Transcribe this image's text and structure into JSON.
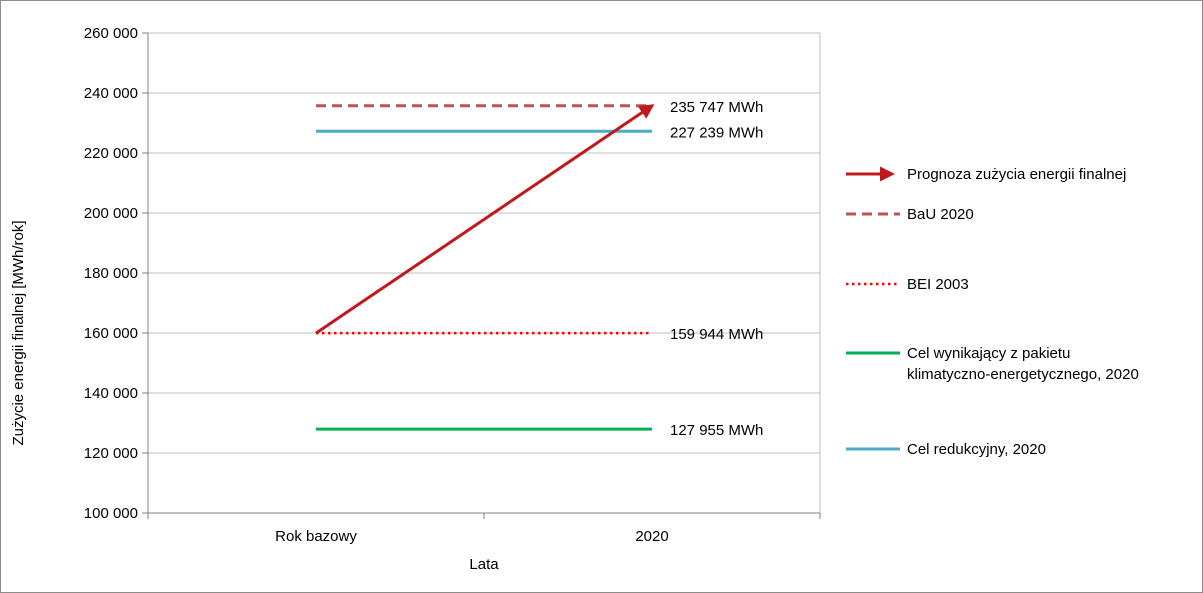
{
  "chart_data": {
    "type": "line",
    "categories": [
      "Rok bazowy",
      "2020"
    ],
    "xlabel": "Lata",
    "ylabel": "Zużycie energii finalnej [MWh/rok]",
    "ylim": [
      100000,
      260000
    ],
    "ytick_step": 20000,
    "ytick_labels": [
      "100 000",
      "120 000",
      "140 000",
      "160 000",
      "180 000",
      "200 000",
      "220 000",
      "240 000",
      "260 000"
    ],
    "grid": "horizontal",
    "legend_position": "right",
    "series": [
      {
        "name": "Prognoza zużycia energii finalnej",
        "style": "arrow",
        "color": "#c0181c",
        "values": [
          159944,
          235747
        ]
      },
      {
        "name": "BaU 2020",
        "style": "dashed",
        "color": "#c0504d",
        "values": [
          235747,
          235747
        ],
        "data_label": "235 747 MWh"
      },
      {
        "name": "BEI 2003",
        "style": "dotted",
        "color": "#ff0000",
        "values": [
          159944,
          159944
        ],
        "data_label": "159 944 MWh"
      },
      {
        "name": "Cel wynikający z pakietu klimatyczno-energetycznego, 2020",
        "name_lines": [
          "Cel wynikający z pakietu",
          "klimatyczno-energetycznego, 2020"
        ],
        "style": "solid",
        "color": "#00b050",
        "values": [
          127955,
          127955
        ],
        "data_label": "127 955 MWh"
      },
      {
        "name": "Cel redukcyjny, 2020",
        "style": "solid",
        "color": "#4bacc6",
        "values": [
          227239,
          227239
        ],
        "data_label": "227 239 MWh"
      }
    ]
  }
}
